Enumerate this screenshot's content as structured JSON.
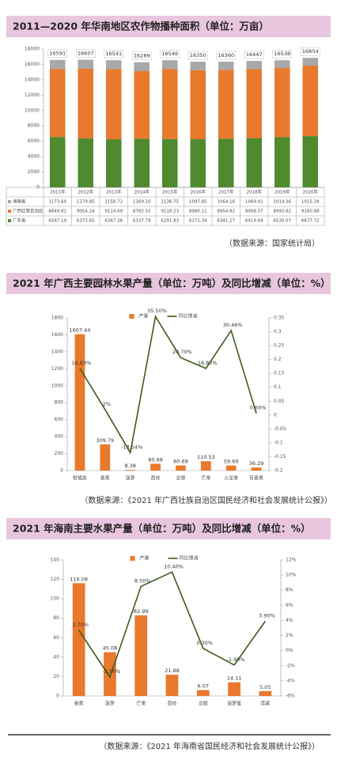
{
  "chart_data": [
    {
      "type": "bar",
      "stacked": true,
      "title": "2011—2020 年华南地区农作物播种面积（单位：万亩）",
      "categories": [
        "2011年",
        "2012年",
        "2013年",
        "2014年",
        "2015年",
        "2016年",
        "2017年",
        "2018年",
        "2019年",
        "2020年"
      ],
      "series": [
        {
          "name": "广东省",
          "color": "#4f8a2f",
          "values": [
            6567.1,
            6372.65,
            6267.36,
            6337.79,
            6291.83,
            6272.34,
            6341.17,
            6419.04,
            6530.07,
            6677.72
          ],
          "value_labels": [
            "6567.10",
            "6372.65",
            "6267.36",
            "6337.79",
            "6291.83",
            "6272.34",
            "6341.17",
            "6419.04",
            "6530.07",
            "6677.72"
          ]
        },
        {
          "name": "广西壮族自治区",
          "color": "#e9792c",
          "values": [
            8849.82,
            9054.24,
            9114.69,
            8782.55,
            9118.23,
            8980.11,
            8954.82,
            8958.57,
            8993.82,
            9160.88
          ],
          "value_labels": [
            "8849.82",
            "9054.24",
            "9114.69",
            "8782.55",
            "9118.23",
            "8980.11",
            "8954.82",
            "8958.57",
            "8993.82",
            "9160.88"
          ]
        },
        {
          "name": "海南省",
          "color": "#a8a8a8",
          "values": [
            1173.6,
            1179.85,
            1158.72,
            1169.1,
            1136.75,
            1097.85,
            1064.16,
            1069.41,
            1014.36,
            1015.29
          ],
          "value_labels": [
            "1173.60",
            "1179.85",
            "1158.72",
            "1169.10",
            "1136.75",
            "1097.85",
            "1064.16",
            "1069.41",
            "1014.36",
            "1015.29"
          ]
        }
      ],
      "totals": [
        16591,
        16607,
        16541,
        16289,
        16546,
        16350,
        16360,
        16447,
        16538,
        16854
      ],
      "ylim": [
        0,
        18000
      ],
      "yticks": [
        0,
        2000,
        4000,
        6000,
        8000,
        10000,
        12000,
        14000,
        16000,
        18000
      ],
      "source": "（数据来源：国家统计局）"
    },
    {
      "type": "bar",
      "title": "2021 年广西主要园林水果产量（单位：万吨）及同比增减（单位：%）",
      "categories": [
        "柑橘类",
        "香蕉",
        "菠萝",
        "荔枝",
        "龙眼",
        "芒果",
        "火龙果",
        "百香果"
      ],
      "series": [
        {
          "name": "产量",
          "color": "#e9792c",
          "values": [
            1607.44,
            309.79,
            8.38,
            80.68,
            60.69,
            110.53,
            59.69,
            36.29
          ]
        },
        {
          "name": "同比增减",
          "type": "line",
          "axis": "y2",
          "color": "#3d5a1e",
          "values": [
            0.1683,
            0.02,
            -0.1354,
            0.355,
            0.207,
            0.168,
            0.3046,
            0.006
          ],
          "value_labels": [
            "16.83%",
            "2%",
            "-13.54%",
            "35.50%",
            "20.70%",
            "16.80%",
            "30.46%",
            "0.60%"
          ]
        }
      ],
      "ylim": [
        0,
        1800
      ],
      "yticks": [
        0,
        200,
        400,
        600,
        800,
        1000,
        1200,
        1400,
        1600,
        1800
      ],
      "y2lim": [
        -0.2,
        0.35
      ],
      "y2ticks": [
        -0.2,
        -0.15,
        -0.1,
        -0.05,
        0,
        0.05,
        0.1,
        0.15,
        0.2,
        0.25,
        0.3,
        0.35
      ],
      "source": "（数据来源：《2021 年广西壮族自治区国民经济和社会发展统计公报》）"
    },
    {
      "type": "bar",
      "title": "2021 年海南主要水果产量（单位：万吨）及同比增减（单位：%）",
      "categories": [
        "香蕉",
        "菠萝",
        "芒果",
        "荔枝",
        "龙眼",
        "菠萝蜜",
        "莲雾"
      ],
      "series": [
        {
          "name": "产量",
          "color": "#e9792c",
          "values": [
            116.08,
            45.08,
            82.99,
            21.88,
            6.07,
            14.11,
            5.05
          ]
        },
        {
          "name": "同比增减",
          "type": "line",
          "axis": "y2",
          "color": "#3d5a1e",
          "values": [
            2.7,
            -3.5,
            8.5,
            10.4,
            0.3,
            -1.9,
            3.9
          ],
          "value_labels": [
            "2.70%",
            "-3.50%",
            "8.50%",
            "10.40%",
            "0.30%",
            "-1.90%",
            "3.90%"
          ]
        }
      ],
      "ylim": [
        0,
        140
      ],
      "yticks": [
        0,
        20,
        40,
        60,
        80,
        100,
        120,
        140
      ],
      "y2lim": [
        -6,
        12
      ],
      "y2ticks": [
        {
          "value": -6,
          "label": "-6%"
        },
        {
          "value": -4,
          "label": "-4%"
        },
        {
          "value": -2,
          "label": "-2%"
        },
        {
          "value": 0,
          "label": "0%"
        },
        {
          "value": 2,
          "label": "2%"
        },
        {
          "value": 4,
          "label": "4%"
        },
        {
          "value": 6,
          "label": "6%"
        },
        {
          "value": 8,
          "label": "8%"
        },
        {
          "value": 10,
          "label": "10%"
        },
        {
          "value": 12,
          "label": "12%"
        }
      ],
      "source": "（数据来源：《2021 年海南省国民经济和社会发展统计公报》）"
    }
  ]
}
